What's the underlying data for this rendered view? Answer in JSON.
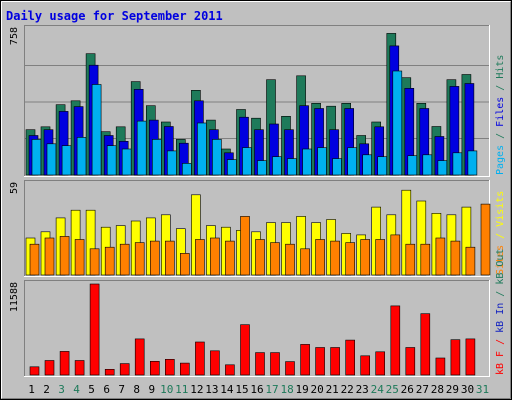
{
  "chart_data": {
    "type": "bar",
    "title": "Daily usage for September 2011",
    "categories": [
      "1",
      "2",
      "3",
      "4",
      "5",
      "6",
      "7",
      "8",
      "9",
      "10",
      "11",
      "12",
      "13",
      "14",
      "15",
      "16",
      "17",
      "18",
      "19",
      "20",
      "21",
      "22",
      "23",
      "24",
      "25",
      "26",
      "27",
      "28",
      "29",
      "30",
      "31"
    ],
    "weekend_days": [
      "3",
      "4",
      "10",
      "11",
      "17",
      "18",
      "24",
      "25",
      "31"
    ],
    "panels": [
      {
        "id": "hits-files-pages",
        "y_max_label": "758",
        "ylim": [
          0,
          758
        ],
        "series": [
          {
            "name": "Hits",
            "color": "#1e7a5a",
            "values": [
              235,
              250,
              365,
              385,
              630,
              225,
              250,
              485,
              360,
              275,
              185,
              440,
              285,
              135,
              340,
              295,
              495,
              305,
              515,
              372,
              357,
              372,
              205,
              275,
              735,
              505,
              372,
              252,
              495,
              522,
              0
            ]
          },
          {
            "name": "Files",
            "color": "#0000e0",
            "values": [
              205,
              235,
              330,
              355,
              570,
              205,
              175,
              445,
              285,
              252,
              165,
              385,
              235,
              115,
              300,
              235,
              265,
              235,
              360,
              345,
              235,
              345,
              162,
              250,
              670,
              450,
              345,
              200,
              460,
              475,
              0
            ]
          },
          {
            "name": "Pages",
            "color": "#00b0f0",
            "values": [
              185,
              162,
              152,
              195,
              470,
              152,
              135,
              280,
              185,
              125,
              60,
              270,
              185,
              80,
              142,
              75,
              95,
              85,
              135,
              142,
              85,
              142,
              105,
              95,
              540,
              100,
              105,
              75,
              115,
              125,
              0
            ]
          }
        ]
      },
      {
        "id": "visits-sites",
        "y_max_label": "59",
        "ylim": [
          0,
          59
        ],
        "series": [
          {
            "name": "Visits",
            "color": "#ffff00",
            "values": [
              24,
              28,
              37,
              42,
              42,
              31,
              32,
              35,
              37,
              39,
              30,
              52,
              32,
              31,
              29,
              28,
              34,
              34,
              38,
              34,
              36,
              27,
              26,
              44,
              39,
              55,
              48,
              40,
              39,
              44,
              0
            ]
          },
          {
            "name": "Sites",
            "color": "#ff8000",
            "values": [
              20,
              24,
              25,
              23,
              17,
              18,
              20,
              21,
              22,
              22,
              14,
              23,
              24,
              22,
              38,
              23,
              21,
              20,
              17,
              23,
              22,
              21,
              23,
              23,
              26,
              20,
              20,
              24,
              22,
              18,
              46
            ]
          }
        ]
      },
      {
        "id": "kb",
        "y_max_label": "11588",
        "ylim": [
          0,
          11588
        ],
        "series": [
          {
            "name": "kB In",
            "color": "#1020c0",
            "values": [
              0,
              0,
              0,
              0,
              0,
              0,
              0,
              0,
              0,
              0,
              0,
              0,
              0,
              0,
              0,
              0,
              0,
              0,
              0,
              0,
              0,
              0,
              0,
              0,
              0,
              0,
              0,
              0,
              0,
              0,
              0
            ]
          },
          {
            "name": "kB F",
            "color": "#ff0000",
            "values": [
              1050,
              1850,
              3010,
              1850,
              11588,
              720,
              1450,
              4600,
              1750,
              2000,
              1520,
              4200,
              3080,
              1300,
              6400,
              2850,
              2850,
              1700,
              3900,
              3500,
              3500,
              4450,
              2450,
              2950,
              8800,
              3500,
              7800,
              2170,
              4500,
              4600,
              0
            ]
          }
        ]
      }
    ],
    "right_labels": {
      "top": [
        {
          "text": "Pages",
          "color": "#00b0f0"
        },
        {
          "text": " / ",
          "color": "#1e7a5a"
        },
        {
          "text": "Files",
          "color": "#0000e0"
        },
        {
          "text": " / ",
          "color": "#1e7a5a"
        },
        {
          "text": "Hits",
          "color": "#1e7a5a"
        }
      ],
      "middle": [
        {
          "text": "Sites",
          "color": "#ff8000"
        },
        {
          "text": " / ",
          "color": "#ffff00"
        },
        {
          "text": "Visits",
          "color": "#ffff00"
        }
      ],
      "bottom": [
        {
          "text": "kB F",
          "color": "#ff0000"
        },
        {
          "text": " / ",
          "color": "#ff0000"
        },
        {
          "text": "kB In",
          "color": "#1020c0"
        },
        {
          "text": " / ",
          "color": "#1e7a5a"
        },
        {
          "text": "kB Out",
          "color": "#1e7a5a"
        }
      ]
    },
    "colors": {
      "background": "#c0c0c0",
      "title": "#0000e0",
      "axis_label": "#000000",
      "weekday": "#000000",
      "weekend": "#1e7a5a",
      "gridline": "#808080"
    }
  }
}
